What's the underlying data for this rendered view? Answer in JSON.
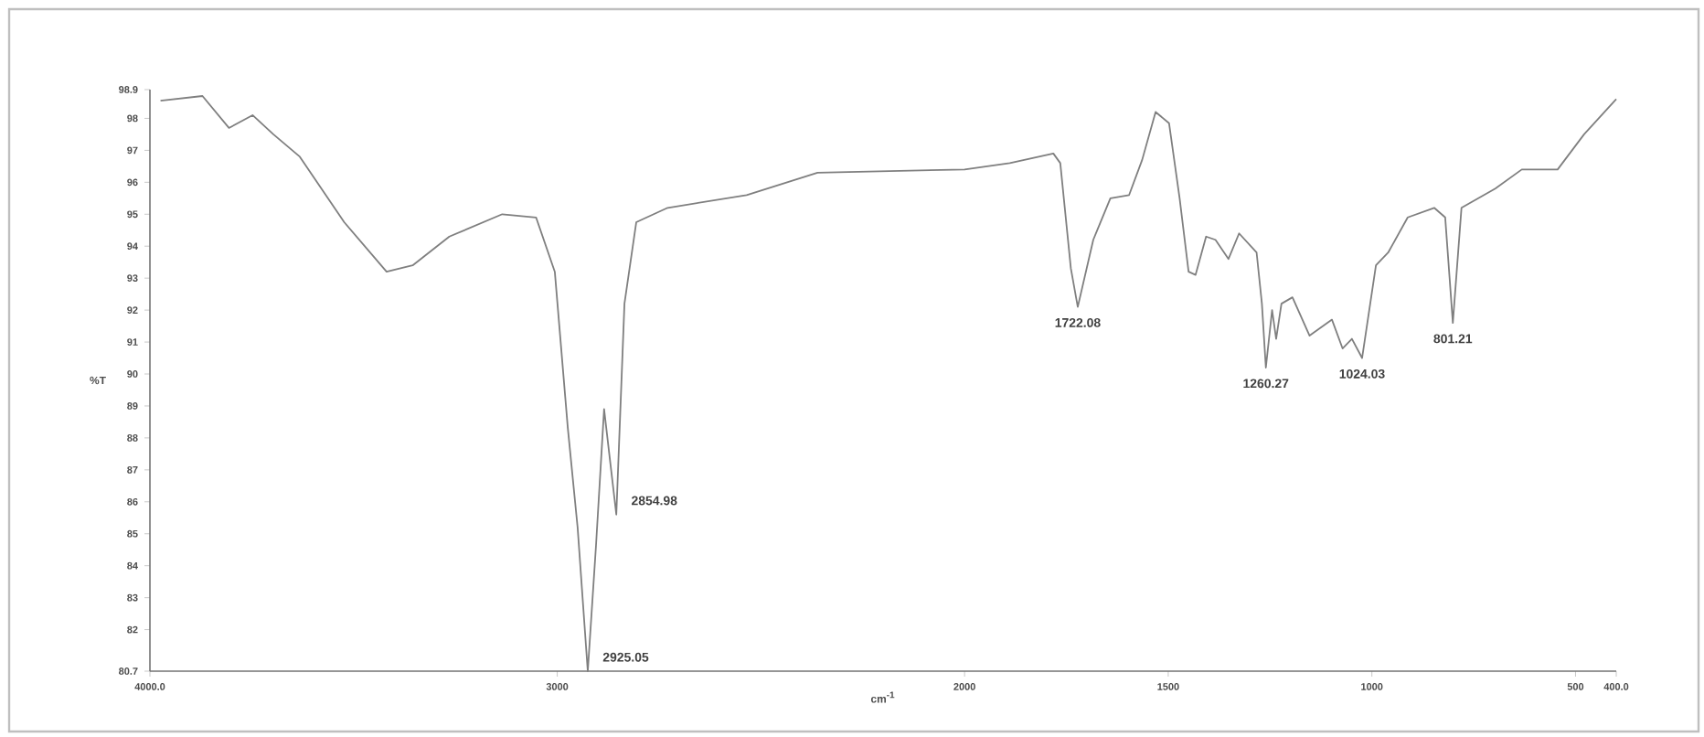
{
  "chart_data": {
    "type": "line",
    "xlabel": "cm$^{-1}$",
    "ylabel": "%T",
    "xlim": [
      4000,
      400
    ],
    "ylim": [
      80.7,
      98.9
    ],
    "xticks": [
      {
        "value": 4000,
        "label": "4000.0"
      },
      3000,
      2000,
      1500,
      1000,
      500,
      {
        "value": 400,
        "label": "400.0"
      }
    ],
    "yticks": [
      80.7,
      82,
      83,
      84,
      85,
      86,
      87,
      88,
      89,
      90,
      91,
      92,
      93,
      94,
      95,
      96,
      97,
      98,
      98.9
    ],
    "series": [
      {
        "color": "#7f7f7f",
        "x": [
          3974,
          3871,
          3806,
          3748,
          3697,
          3632,
          3523,
          3419,
          3355,
          3265,
          3135,
          3052,
          3006,
          2974,
          2950,
          2925.05,
          2905,
          2885,
          2854.98,
          2835,
          2806,
          2729,
          2535,
          2361,
          2000,
          1889,
          1782,
          1765,
          1739,
          1722.08,
          1684,
          1642,
          1596,
          1564,
          1531,
          1498,
          1472,
          1450,
          1433,
          1407,
          1384,
          1352,
          1326,
          1283,
          1270,
          1260.27,
          1245,
          1235,
          1222,
          1195,
          1153,
          1098,
          1072,
          1049,
          1024.03,
          990,
          960,
          912,
          847,
          820,
          801.21,
          780,
          697,
          632,
          544,
          479,
          400
        ],
        "values": [
          98.55,
          98.7,
          97.7,
          98.1,
          97.5,
          96.8,
          94.75,
          93.2,
          93.4,
          94.3,
          95.0,
          94.9,
          93.2,
          88.3,
          85.2,
          80.7,
          84.6,
          88.9,
          85.6,
          92.2,
          94.75,
          95.2,
          95.6,
          96.3,
          96.4,
          96.6,
          96.9,
          96.6,
          93.3,
          92.1,
          94.2,
          95.5,
          95.6,
          96.7,
          98.2,
          97.85,
          95.5,
          93.2,
          93.1,
          94.3,
          94.2,
          93.6,
          94.4,
          93.8,
          92.2,
          90.2,
          92.0,
          91.1,
          92.2,
          92.4,
          91.2,
          91.7,
          90.8,
          91.1,
          90.5,
          93.4,
          93.8,
          94.9,
          95.2,
          94.9,
          91.6,
          95.2,
          95.8,
          96.4,
          96.4,
          97.5,
          98.6
        ]
      }
    ],
    "annotations": [
      {
        "text": "2925.05",
        "x": 2925.05,
        "y": 80.7
      },
      {
        "text": "2854.98",
        "x": 2854.98,
        "y": 85.6
      },
      {
        "text": "1722.08",
        "x": 1722.08,
        "y": 92.1
      },
      {
        "text": "1260.27",
        "x": 1260.27,
        "y": 90.2
      },
      {
        "text": "1024.03",
        "x": 1024.03,
        "y": 90.5
      },
      {
        "text": "801.21",
        "x": 801.21,
        "y": 91.6
      }
    ]
  }
}
